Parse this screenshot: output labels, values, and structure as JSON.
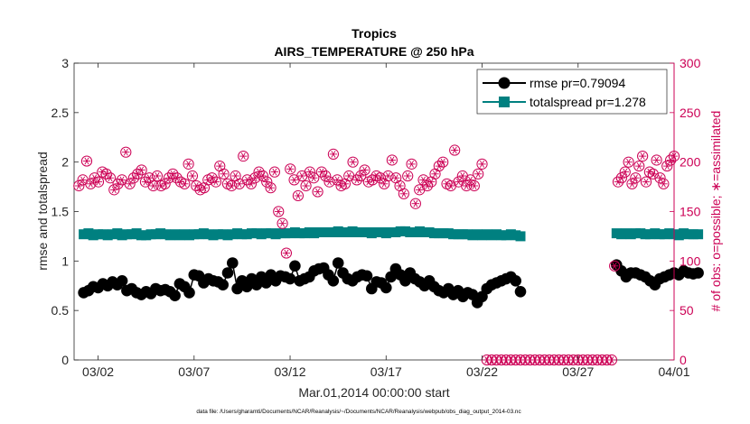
{
  "chart_data": {
    "type": "line",
    "title": "Tropics",
    "subtitle": "AIRS_TEMPERATURE @ 250 hPa",
    "xlabel": "Mar.01,2014 00:00:00 start",
    "ylabel_left": "rmse and totalspread",
    "ylabel_right": "# of obs: o=possible; ∗=assimilated",
    "footnote": "data file: /Users/gharamti/Documents/NCAR/Reanalysis/~/Documents/NCAR/Reanalysis/webpub/obs_diag_output_2014-03.nc",
    "x_unit": "day of month (Mar 2014), 1 = 03/01 00:00",
    "xlim": [
      0.75,
      32.0
    ],
    "ylim_left": [
      0,
      3
    ],
    "ylim_right": [
      0,
      300
    ],
    "x_ticks": [
      {
        "x": 2,
        "label": "03/02"
      },
      {
        "x": 7,
        "label": "03/07"
      },
      {
        "x": 12,
        "label": "03/12"
      },
      {
        "x": 17,
        "label": "03/17"
      },
      {
        "x": 22,
        "label": "03/22"
      },
      {
        "x": 27,
        "label": "03/27"
      },
      {
        "x": 32,
        "label": "04/01"
      }
    ],
    "y_ticks_left": [
      "0",
      "0.5",
      "1",
      "1.5",
      "2",
      "2.5",
      "3"
    ],
    "y_ticks_right": [
      "0",
      "50",
      "100",
      "150",
      "200",
      "250",
      "300"
    ],
    "legend": [
      {
        "name": "rmse pr=0.79094",
        "color": "#000000",
        "marker": "circle"
      },
      {
        "name": "totalspread pr=1.278",
        "color": "#008080",
        "marker": "square"
      }
    ],
    "colors": {
      "rmse": "#000000",
      "spread": "#008080",
      "obs": "#cc0055",
      "axis": "#262626",
      "right_axis": "#cc0055"
    },
    "rmse_segment_1": [
      0.68,
      0.7,
      0.74,
      0.73,
      0.77,
      0.75,
      0.79,
      0.76,
      0.8,
      0.7,
      0.72,
      0.68,
      0.66,
      0.69,
      0.67,
      0.72,
      0.7,
      0.71,
      0.69,
      0.65,
      0.77,
      0.74,
      0.68,
      0.86,
      0.85,
      0.78,
      0.82,
      0.8,
      0.79,
      0.76,
      0.88,
      0.98,
      0.72,
      0.8,
      0.74,
      0.82,
      0.76,
      0.84,
      0.78,
      0.86,
      0.8,
      0.85,
      0.84,
      0.82,
      0.95,
      0.8,
      0.82,
      0.84,
      0.9,
      0.92,
      0.93,
      0.86,
      0.8,
      0.98,
      0.88,
      0.82,
      0.8,
      0.84,
      0.86,
      0.85,
      0.72,
      0.79,
      0.78,
      0.73,
      0.84,
      0.92,
      0.86,
      0.8,
      0.88,
      0.82,
      0.79,
      0.75,
      0.8,
      0.74,
      0.7,
      0.68,
      0.72,
      0.66,
      0.7,
      0.64,
      0.68,
      0.66,
      0.58,
      0.64,
      0.72,
      0.76,
      0.78,
      0.8,
      0.82,
      0.84,
      0.8,
      0.69
    ],
    "spread_segment_1": [
      1.27,
      1.28,
      1.26,
      1.27,
      1.27,
      1.26,
      1.27,
      1.28,
      1.26,
      1.27,
      1.27,
      1.28,
      1.26,
      1.26,
      1.27,
      1.27,
      1.28,
      1.27,
      1.26,
      1.27,
      1.26,
      1.27,
      1.26,
      1.27,
      1.27,
      1.28,
      1.27,
      1.26,
      1.27,
      1.27,
      1.26,
      1.27,
      1.28,
      1.27,
      1.27,
      1.28,
      1.28,
      1.27,
      1.28,
      1.28,
      1.27,
      1.28,
      1.28,
      1.28,
      1.29,
      1.28,
      1.28,
      1.29,
      1.28,
      1.29,
      1.29,
      1.29,
      1.29,
      1.3,
      1.29,
      1.29,
      1.3,
      1.29,
      1.29,
      1.29,
      1.28,
      1.29,
      1.29,
      1.28,
      1.29,
      1.29,
      1.3,
      1.3,
      1.29,
      1.29,
      1.3,
      1.29,
      1.29,
      1.28,
      1.28,
      1.28,
      1.28,
      1.27,
      1.27,
      1.27,
      1.27,
      1.26,
      1.27,
      1.26,
      1.27,
      1.26,
      1.27,
      1.26,
      1.26,
      1.27,
      1.26,
      1.25
    ],
    "obs_segment_1": [
      176,
      182,
      201,
      178,
      184,
      180,
      190,
      188,
      184,
      172,
      178,
      182,
      210,
      178,
      184,
      188,
      192,
      180,
      184,
      176,
      186,
      176,
      178,
      184,
      188,
      184,
      180,
      178,
      198,
      186,
      176,
      172,
      174,
      182,
      184,
      180,
      196,
      188,
      178,
      176,
      186,
      178,
      206,
      182,
      178,
      184,
      190,
      186,
      180,
      174,
      190,
      150,
      138,
      108,
      193,
      182,
      166,
      186,
      176,
      190,
      184,
      170,
      190,
      186,
      180,
      208,
      182,
      176,
      178,
      186,
      200,
      182,
      186,
      192,
      180,
      182,
      186,
      184,
      178,
      186,
      202,
      184,
      176,
      168,
      186,
      198,
      158,
      172,
      182,
      176,
      180,
      188,
      196,
      200,
      178,
      176,
      212,
      180,
      186,
      176,
      182,
      176,
      188,
      198
    ],
    "rmse_segment_2": [
      0.96,
      0.9,
      0.84,
      0.88,
      0.88,
      0.86,
      0.84,
      0.8,
      0.76,
      0.82,
      0.84,
      0.86,
      0.88,
      0.86,
      0.9,
      0.88,
      0.87,
      0.88
    ],
    "spread_segment_2": [
      1.28,
      1.27,
      1.28,
      1.27,
      1.28,
      1.28,
      1.27,
      1.27,
      1.28,
      1.27,
      1.27,
      1.28,
      1.27,
      1.26,
      1.28,
      1.27,
      1.27,
      1.27
    ],
    "obs_segment_2": [
      95,
      180,
      184,
      190,
      200,
      178,
      184,
      196,
      206,
      180,
      190,
      188,
      202,
      184,
      178,
      196,
      202,
      206
    ]
  }
}
